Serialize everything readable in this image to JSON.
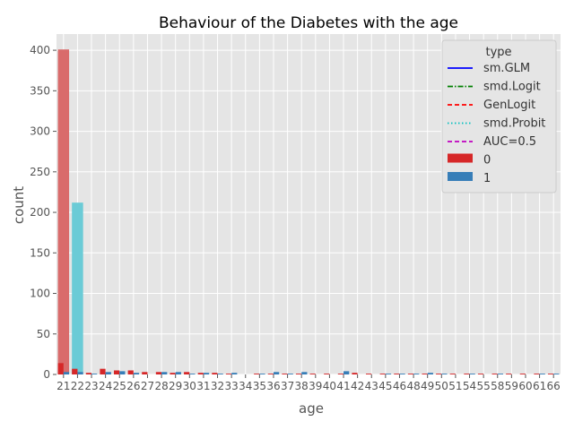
{
  "chart_data": {
    "type": "bar",
    "title": "Behaviour of the Diabetes with the age",
    "xlabel": "age",
    "ylabel": "count",
    "ylim": [
      0,
      420
    ],
    "yticks": [
      0,
      50,
      100,
      150,
      200,
      250,
      300,
      350,
      400
    ],
    "grid": true,
    "legend_title": "type",
    "legend_placement": "top-right",
    "categories": [
      21,
      22,
      23,
      24,
      25,
      26,
      27,
      28,
      29,
      30,
      31,
      32,
      33,
      34,
      35,
      36,
      37,
      38,
      39,
      40,
      41,
      42,
      43,
      45,
      46,
      48,
      49,
      50,
      51,
      54,
      55,
      58,
      59,
      60,
      61,
      66
    ],
    "tick_labels": [
      "21",
      "22",
      "23",
      "24",
      "25",
      "26",
      "27",
      "28",
      "29",
      "30",
      "31",
      "32",
      "33",
      "34",
      "35",
      "36",
      "37",
      "38",
      "39",
      "40",
      "41",
      "42",
      "43",
      "45",
      "46",
      "48",
      "49",
      "50",
      "51",
      "54",
      "55",
      "58",
      "59",
      "60",
      "61",
      "66"
    ],
    "series": [
      {
        "name": "0",
        "color": "#d62728",
        "values": [
          14,
          7,
          2,
          7,
          5,
          5,
          3,
          3,
          2,
          3,
          2,
          2,
          1,
          0,
          1,
          1,
          1,
          1,
          1,
          1,
          1,
          2,
          1,
          1,
          1,
          1,
          1,
          1,
          1,
          1,
          1,
          1,
          1,
          1,
          1,
          1
        ]
      },
      {
        "name": "1",
        "color": "#377eb8",
        "values": [
          3,
          3,
          1,
          3,
          4,
          2,
          0,
          3,
          3,
          1,
          2,
          1,
          2,
          0,
          1,
          3,
          1,
          3,
          0,
          0,
          4,
          0,
          0,
          1,
          1,
          1,
          2,
          1,
          0,
          1,
          0,
          1,
          0,
          0,
          1,
          1
        ]
      }
    ],
    "overlay_bars": [
      {
        "category": 21,
        "value": 401,
        "color": "#d96b6b"
      },
      {
        "category": 22,
        "value": 212,
        "color": "#6bcbd6"
      }
    ],
    "legend_lines": [
      {
        "label": "sm.GLM",
        "color": "#0000ff",
        "dash": "solid"
      },
      {
        "label": "smd.Logit",
        "color": "#008000",
        "dash": "dashdot"
      },
      {
        "label": "GenLogit",
        "color": "#ff0000",
        "dash": "dashed"
      },
      {
        "label": "smd.Probit",
        "color": "#00bfbf",
        "dash": "dotted"
      },
      {
        "label": "AUC=0.5",
        "color": "#bf00bf",
        "dash": "dashed"
      }
    ]
  }
}
